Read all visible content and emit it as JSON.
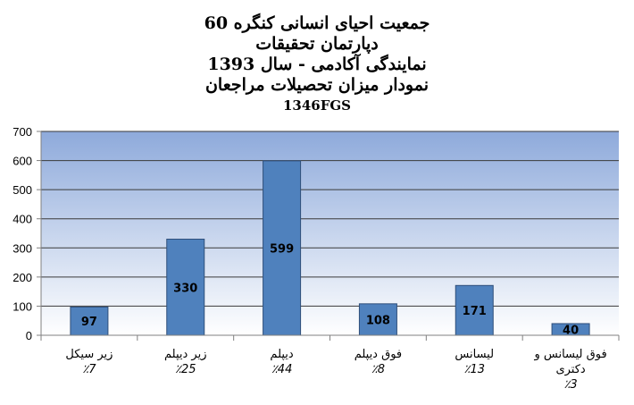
{
  "chart_data": {
    "type": "bar",
    "title_lines": [
      "جمعیت احیای انسانی کنگره 60",
      "دپارتمان تحقیقات",
      "نمایندگی آکادمی - سال 1393",
      "نمودار میزان تحصیلات مراجعان",
      "1346FGS"
    ],
    "categories": [
      [
        "زیر سیکل",
        "٪7"
      ],
      [
        "زیر دیپلم",
        "٪25"
      ],
      [
        "دیپلم",
        "٪44"
      ],
      [
        "فوق دیپلم",
        "٪8"
      ],
      [
        "لیسانس",
        "٪13"
      ],
      [
        "فوق لیسانس و",
        "دکتری",
        "٪3"
      ]
    ],
    "values": [
      97,
      330,
      599,
      108,
      171,
      40
    ],
    "data_labels": [
      "97",
      "330",
      "599",
      "108",
      "171",
      "40"
    ],
    "ylim": [
      0,
      700
    ],
    "yticks": [
      "0",
      "100",
      "200",
      "300",
      "400",
      "500",
      "600",
      "700"
    ],
    "xlabel": "",
    "ylabel": "",
    "grid": true,
    "legend": "none",
    "colors": {
      "bar": "#4F81BD",
      "bar_edge": "#2F4F7A",
      "plot_bg_top": "#8EAADB",
      "plot_bg_bottom": "#FFFFFF",
      "gridline": "#3A3A3A"
    }
  }
}
